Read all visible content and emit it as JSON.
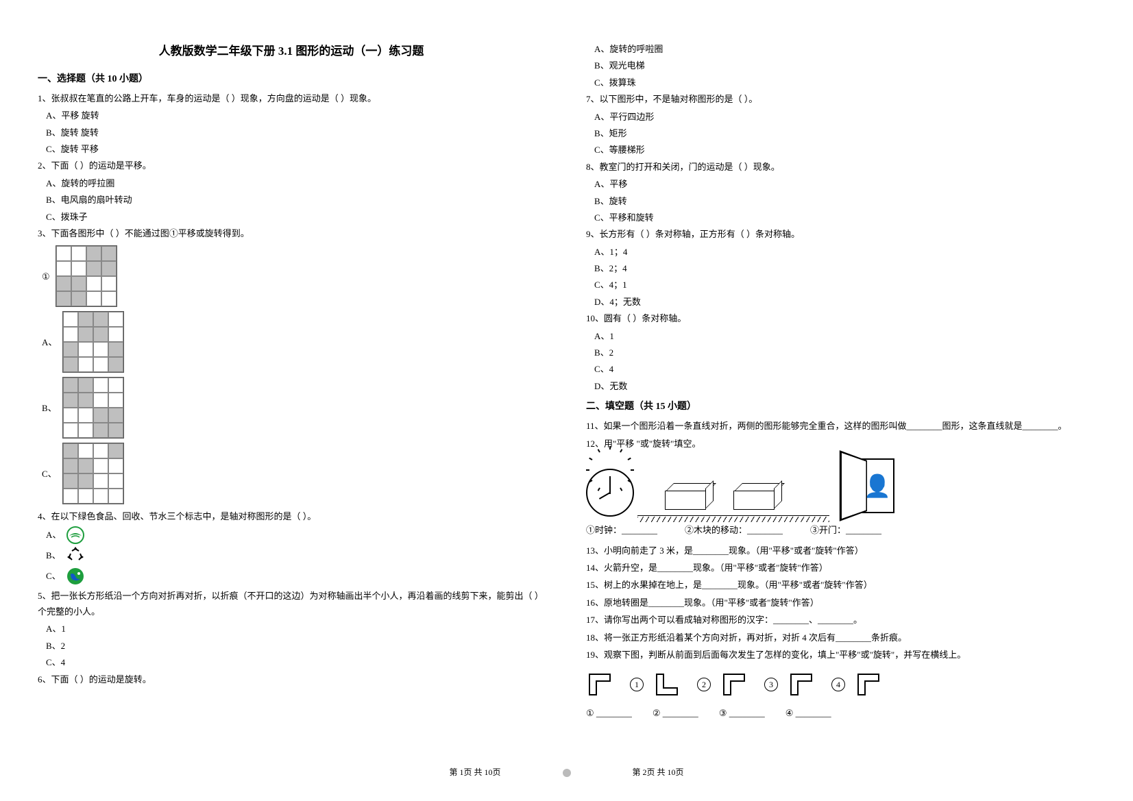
{
  "title": "人教版数学二年级下册 3.1 图形的运动（一）练习题",
  "section1": {
    "heading": "一、选择题（共 10 小题）"
  },
  "q1": {
    "text": "1、张叔叔在笔直的公路上开车，车身的运动是（  ）现象，方向盘的运动是（  ）现象。",
    "a": "A、平移 旋转",
    "b": "B、旋转 旋转",
    "c": "C、旋转 平移"
  },
  "q2": {
    "text": "2、下面（  ）的运动是平移。",
    "a": "A、旋转的呼拉圈",
    "b": "B、电风扇的扇叶转动",
    "c": "C、拨珠子"
  },
  "q3": {
    "text": "3、下面各图形中（  ）不能通过图①平移或旋转得到。",
    "labelBase": "①",
    "labelA": "A、",
    "labelB": "B、",
    "labelC": "C、",
    "base": [
      0,
      0,
      1,
      1,
      0,
      0,
      1,
      1,
      1,
      1,
      0,
      0,
      1,
      1,
      0,
      0
    ],
    "optA": [
      0,
      1,
      1,
      0,
      0,
      1,
      1,
      0,
      1,
      0,
      0,
      1,
      1,
      0,
      0,
      1
    ],
    "optB": [
      1,
      1,
      0,
      0,
      1,
      1,
      0,
      0,
      0,
      0,
      1,
      1,
      0,
      0,
      1,
      1
    ],
    "optC": [
      1,
      0,
      0,
      1,
      1,
      1,
      0,
      0,
      1,
      1,
      0,
      0,
      0,
      0,
      0,
      0
    ]
  },
  "q4": {
    "text": "4、在以下绿色食品、回收、节水三个标志中，是轴对称图形的是（  ）。",
    "a": "A、",
    "b": "B、",
    "c": "C、"
  },
  "q5": {
    "text": "5、把一张长方形纸沿一个方向对折再对折，以折痕（不开口的这边）为对称轴画出半个小人，再沿着画的线剪下来，能剪出（  ）个完整的小人。",
    "a": "A、1",
    "b": "B、2",
    "c": "C、4"
  },
  "q6": {
    "text": "6、下面（  ）的运动是旋转。",
    "a": "A、旋转的呼啦圈",
    "b": "B、观光电梯",
    "c": "C、拨算珠"
  },
  "q7": {
    "text": "7、以下图形中，不是轴对称图形的是（  ）。",
    "a": "A、平行四边形",
    "b": "B、矩形",
    "c": "C、等腰梯形"
  },
  "q8": {
    "text": "8、教室门的打开和关闭，门的运动是（  ）现象。",
    "a": "A、平移",
    "b": "B、旋转",
    "c": "C、平移和旋转"
  },
  "q9": {
    "text": "9、长方形有（  ）条对称轴，正方形有（  ）条对称轴。",
    "a": "A、1；4",
    "b": "B、2；4",
    "c": "C、4；1",
    "d": "D、4；无数"
  },
  "q10": {
    "text": "10、圆有（  ）条对称轴。",
    "a": "A、1",
    "b": "B、2",
    "c": "C、4",
    "d": "D、无数"
  },
  "section2": {
    "heading": "二、填空题（共 15 小题）"
  },
  "q11": "11、如果一个图形沿着一条直线对折，两侧的图形能够完全重合，这样的图形叫做________图形，这条直线就是________。",
  "q12": {
    "text": "12、用\"平移 \"或\"旋转\"填空。",
    "i1": "①时钟：________",
    "i2": "②木块的移动：________",
    "i3": "③开门：________"
  },
  "q13": "13、小明向前走了 3 米，是________现象。（用\"平移\"或者\"旋转\"作答）",
  "q14": "14、火箭升空，是________现象。（用\"平移\"或者\"旋转\"作答）",
  "q15": "15、树上的水果掉在地上，是________现象。（用\"平移\"或者\"旋转\"作答）",
  "q16": "16、原地转圈是________现象。（用\"平移\"或者\"旋转\"作答）",
  "q17": "17、请你写出两个可以看成轴对称图形的汉字：________、________。",
  "q18": "18、将一张正方形纸沿着某个方向对折，再对折，对折 4 次后有________条折痕。",
  "q19": {
    "text": "19、观察下图，判断从前面到后面每次发生了怎样的变化，填上\"平移\"或\"旋转\"，并写在横线上。",
    "a1": "① ________",
    "a2": "② ________",
    "a3": "③ ________",
    "a4": "④ ________",
    "n1": "1",
    "n2": "2",
    "n3": "3",
    "n4": "4"
  },
  "footer": {
    "left": "第 1页 共 10页",
    "right": "第 2页 共 10页"
  },
  "colors": {
    "text": "#000000",
    "fill": "#bfbfbf",
    "green": "#1e9e3e",
    "blue": "#1158c9"
  }
}
